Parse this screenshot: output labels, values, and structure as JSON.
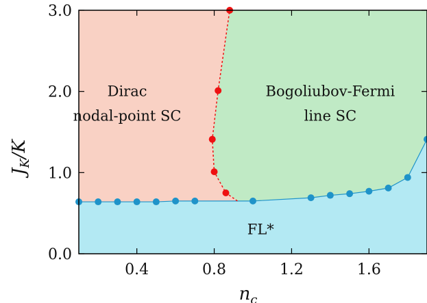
{
  "chart_data": {
    "type": "scatter",
    "title": "",
    "xlabel_main": "n",
    "xlabel_sub": "c",
    "ylabel_main": "J",
    "ylabel_sub": "K",
    "ylabel_rest": "/K",
    "xlim": [
      0.1,
      1.9
    ],
    "ylim": [
      0.0,
      3.0
    ],
    "xticks": [
      "0.4",
      "0.8",
      "1.2",
      "1.6"
    ],
    "xtick_values": [
      0.4,
      0.8,
      1.2,
      1.6
    ],
    "yticks": [
      "0.0",
      "1.0",
      "2.0",
      "3.0"
    ],
    "ytick_values": [
      0.0,
      1.0,
      2.0,
      3.0
    ],
    "regions": [
      {
        "label_lines": [
          "Dirac",
          "nodal-point SC"
        ],
        "color": "#f9d1c4",
        "label_at": [
          0.35,
          1.85
        ]
      },
      {
        "label_lines": [
          "Bogoliubov-Fermi",
          "line SC"
        ],
        "color": "#c0eac5",
        "label_at": [
          1.4,
          1.85
        ]
      },
      {
        "label_lines": [
          "FL*"
        ],
        "color": "#b3e9f3",
        "label_at": [
          1.04,
          0.3
        ]
      }
    ],
    "series": [
      {
        "color": "#1f93c9",
        "style": "solid",
        "x": [
          0.1,
          0.2,
          0.3,
          0.4,
          0.5,
          0.6,
          0.7,
          1.0,
          1.3,
          1.4,
          1.5,
          1.6,
          1.7,
          1.8,
          1.9
        ],
        "y": [
          0.64,
          0.64,
          0.64,
          0.64,
          0.64,
          0.65,
          0.65,
          0.65,
          0.69,
          0.72,
          0.74,
          0.77,
          0.81,
          0.94,
          1.41
        ]
      },
      {
        "color": "#ee1111",
        "style": "dotted",
        "x": [
          0.86,
          0.8,
          0.79,
          0.82,
          0.88
        ],
        "y": [
          0.75,
          1.01,
          1.41,
          2.01,
          3.0
        ]
      }
    ],
    "boundary_lower_end": [
      0.92,
      0.65
    ]
  }
}
